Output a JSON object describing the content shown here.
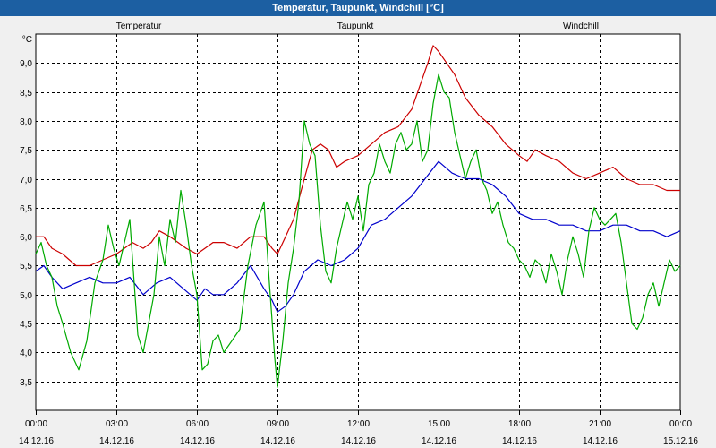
{
  "window": {
    "title": "Temperatur, Taupunkt, Windchill [°C]"
  },
  "colors": {
    "temperatur": "#cc0000",
    "taupunkt": "#0000cc",
    "windchill": "#00aa00",
    "grid": "#000000",
    "background": "#ffffff",
    "titlebar": "#1c5fa2"
  },
  "chart_data": {
    "type": "line",
    "title": "Temperatur, Taupunkt, Windchill [°C]",
    "ylabel": "°C",
    "xlabel": "",
    "ylim": [
      3.0,
      9.5
    ],
    "xlim": [
      0,
      24
    ],
    "grid": true,
    "legend_placement": "top",
    "y_ticks": [
      3.5,
      4.0,
      4.5,
      5.0,
      5.5,
      6.0,
      6.5,
      7.0,
      7.5,
      8.0,
      8.5,
      9.0
    ],
    "y_tick_labels": [
      "3,5",
      "4,0",
      "4,5",
      "5,0",
      "5,5",
      "6,0",
      "6,5",
      "7,0",
      "7,5",
      "8,0",
      "8,5",
      "9,0"
    ],
    "x_ticks": [
      {
        "hour": 0,
        "time": "00:00",
        "date": "14.12.16"
      },
      {
        "hour": 3,
        "time": "03:00",
        "date": "14.12.16"
      },
      {
        "hour": 6,
        "time": "06:00",
        "date": "14.12.16"
      },
      {
        "hour": 9,
        "time": "09:00",
        "date": "14.12.16"
      },
      {
        "hour": 12,
        "time": "12:00",
        "date": "14.12.16"
      },
      {
        "hour": 15,
        "time": "15:00",
        "date": "14.12.16"
      },
      {
        "hour": 18,
        "time": "18:00",
        "date": "14.12.16"
      },
      {
        "hour": 21,
        "time": "21:00",
        "date": "14.12.16"
      },
      {
        "hour": 24,
        "time": "00:00",
        "date": "15.12.16"
      }
    ],
    "series": [
      {
        "name": "Temperatur",
        "color": "#cc0000",
        "x": [
          0,
          0.3,
          0.6,
          1.0,
          1.5,
          2.0,
          2.5,
          3.0,
          3.3,
          3.6,
          4.0,
          4.3,
          4.6,
          5.0,
          5.3,
          5.6,
          6.0,
          6.3,
          6.6,
          7.0,
          7.5,
          8.0,
          8.5,
          8.8,
          9.0,
          9.3,
          9.6,
          10.0,
          10.3,
          10.6,
          10.9,
          11.2,
          11.5,
          12.0,
          12.5,
          13.0,
          13.5,
          14.0,
          14.3,
          14.6,
          14.8,
          15.0,
          15.3,
          15.6,
          16.0,
          16.5,
          17.0,
          17.5,
          18.0,
          18.3,
          18.6,
          19.0,
          19.5,
          20.0,
          20.5,
          21.0,
          21.5,
          22.0,
          22.5,
          23.0,
          23.5,
          24.0
        ],
        "values": [
          6.0,
          6.0,
          5.8,
          5.7,
          5.5,
          5.5,
          5.6,
          5.7,
          5.8,
          5.9,
          5.8,
          5.9,
          6.1,
          6.0,
          5.9,
          5.8,
          5.7,
          5.8,
          5.9,
          5.9,
          5.8,
          6.0,
          6.0,
          5.8,
          5.7,
          6.0,
          6.3,
          7.0,
          7.5,
          7.6,
          7.5,
          7.2,
          7.3,
          7.4,
          7.6,
          7.8,
          7.9,
          8.2,
          8.6,
          9.0,
          9.3,
          9.2,
          9.0,
          8.8,
          8.4,
          8.1,
          7.9,
          7.6,
          7.4,
          7.3,
          7.5,
          7.4,
          7.3,
          7.1,
          7.0,
          7.1,
          7.2,
          7.0,
          6.9,
          6.9,
          6.8,
          6.8
        ]
      },
      {
        "name": "Taupunkt",
        "color": "#0000cc",
        "x": [
          0,
          0.3,
          0.6,
          1.0,
          1.5,
          2.0,
          2.5,
          3.0,
          3.5,
          4.0,
          4.5,
          5.0,
          5.5,
          6.0,
          6.3,
          6.6,
          7.0,
          7.5,
          8.0,
          8.5,
          8.8,
          9.0,
          9.3,
          9.6,
          10.0,
          10.5,
          11.0,
          11.5,
          12.0,
          12.5,
          13.0,
          13.5,
          14.0,
          14.5,
          15.0,
          15.5,
          16.0,
          16.5,
          17.0,
          17.5,
          18.0,
          18.5,
          19.0,
          19.5,
          20.0,
          20.5,
          21.0,
          21.5,
          22.0,
          22.5,
          23.0,
          23.5,
          24.0
        ],
        "values": [
          5.4,
          5.5,
          5.3,
          5.1,
          5.2,
          5.3,
          5.2,
          5.2,
          5.3,
          5.0,
          5.2,
          5.3,
          5.1,
          4.9,
          5.1,
          5.0,
          5.0,
          5.2,
          5.5,
          5.1,
          4.9,
          4.7,
          4.8,
          5.0,
          5.4,
          5.6,
          5.5,
          5.6,
          5.8,
          6.2,
          6.3,
          6.5,
          6.7,
          7.0,
          7.3,
          7.1,
          7.0,
          7.0,
          6.9,
          6.7,
          6.4,
          6.3,
          6.3,
          6.2,
          6.2,
          6.1,
          6.1,
          6.2,
          6.2,
          6.1,
          6.1,
          6.0,
          6.1
        ]
      },
      {
        "name": "Windchill",
        "color": "#00aa00",
        "x": [
          0,
          0.2,
          0.4,
          0.6,
          0.8,
          1.0,
          1.3,
          1.6,
          1.9,
          2.2,
          2.5,
          2.7,
          2.9,
          3.1,
          3.3,
          3.5,
          3.8,
          4.0,
          4.2,
          4.4,
          4.6,
          4.8,
          5.0,
          5.2,
          5.4,
          5.6,
          5.8,
          6.0,
          6.2,
          6.4,
          6.6,
          6.8,
          7.0,
          7.3,
          7.6,
          7.9,
          8.2,
          8.5,
          8.7,
          8.9,
          9.0,
          9.2,
          9.4,
          9.6,
          9.8,
          10.0,
          10.2,
          10.4,
          10.6,
          10.8,
          11.0,
          11.2,
          11.4,
          11.6,
          11.8,
          12.0,
          12.2,
          12.4,
          12.6,
          12.8,
          13.0,
          13.2,
          13.4,
          13.6,
          13.8,
          14.0,
          14.2,
          14.4,
          14.6,
          14.8,
          15.0,
          15.2,
          15.4,
          15.6,
          15.8,
          16.0,
          16.2,
          16.4,
          16.6,
          16.8,
          17.0,
          17.2,
          17.4,
          17.6,
          17.8,
          18.0,
          18.2,
          18.4,
          18.6,
          18.8,
          19.0,
          19.2,
          19.4,
          19.6,
          19.8,
          20.0,
          20.2,
          20.4,
          20.6,
          20.8,
          21.0,
          21.2,
          21.4,
          21.6,
          21.8,
          22.0,
          22.2,
          22.4,
          22.6,
          22.8,
          23.0,
          23.2,
          23.4,
          23.6,
          23.8,
          24.0
        ],
        "values": [
          5.7,
          5.9,
          5.5,
          5.3,
          4.8,
          4.5,
          4.0,
          3.7,
          4.2,
          5.2,
          5.6,
          6.2,
          5.8,
          5.5,
          5.9,
          6.3,
          4.3,
          4.0,
          4.5,
          5.0,
          6.0,
          5.5,
          6.3,
          5.9,
          6.8,
          6.2,
          5.5,
          5.0,
          3.7,
          3.8,
          4.2,
          4.3,
          4.0,
          4.2,
          4.4,
          5.5,
          6.2,
          6.6,
          5.2,
          3.9,
          3.4,
          4.2,
          5.2,
          5.8,
          6.6,
          8.0,
          7.6,
          7.4,
          6.2,
          5.4,
          5.2,
          5.8,
          6.2,
          6.6,
          6.3,
          6.7,
          6.1,
          6.9,
          7.1,
          7.6,
          7.3,
          7.1,
          7.6,
          7.8,
          7.5,
          7.6,
          8.0,
          7.3,
          7.5,
          8.3,
          8.8,
          8.5,
          8.4,
          7.8,
          7.4,
          7.0,
          7.3,
          7.5,
          7.0,
          6.8,
          6.4,
          6.6,
          6.2,
          5.9,
          5.8,
          5.6,
          5.5,
          5.3,
          5.6,
          5.5,
          5.2,
          5.7,
          5.4,
          5.0,
          5.6,
          6.0,
          5.7,
          5.3,
          6.1,
          6.5,
          6.3,
          6.2,
          6.3,
          6.4,
          5.9,
          5.2,
          4.5,
          4.4,
          4.6,
          5.0,
          5.2,
          4.8,
          5.2,
          5.6,
          5.4,
          5.5
        ]
      }
    ]
  }
}
